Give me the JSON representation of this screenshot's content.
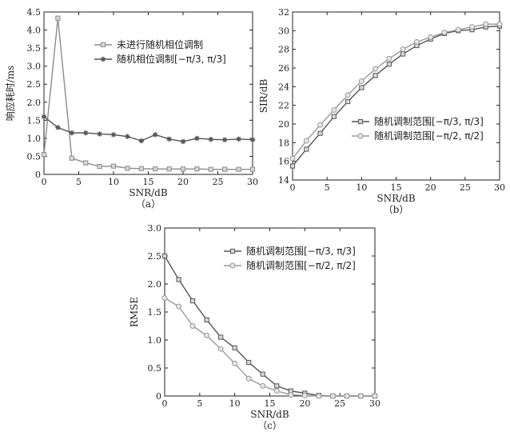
{
  "chart_data": [
    {
      "type": "line",
      "panel_label": "（a）",
      "xlabel": "SNR/dB",
      "ylabel": "响应耗时/ms",
      "xlim": [
        0,
        30
      ],
      "ylim": [
        0,
        4.5
      ],
      "xticks": [
        0,
        5,
        10,
        15,
        20,
        25,
        30
      ],
      "yticks": [
        0,
        0.5,
        1.0,
        1.5,
        2.0,
        2.5,
        3.0,
        3.5,
        4.0,
        4.5
      ],
      "ytick_labels": [
        "0",
        "0.5",
        "1.0",
        "1.5",
        "2.0",
        "2.5",
        "3.0",
        "3.5",
        "4.0",
        "4.5"
      ],
      "legend_position": "top-right",
      "series": [
        {
          "name": "未进行随机相位调制",
          "marker": "square",
          "color": "#8c8c8c",
          "x": [
            0,
            2,
            4,
            6,
            8,
            10,
            12,
            14,
            16,
            18,
            20,
            22,
            24,
            26,
            28,
            30
          ],
          "y": [
            0.55,
            4.33,
            0.45,
            0.32,
            0.22,
            0.23,
            0.17,
            0.16,
            0.15,
            0.15,
            0.15,
            0.15,
            0.14,
            0.14,
            0.14,
            0.14
          ]
        },
        {
          "name": "随机相位调制[−π/3, π/3]",
          "marker": "asterisk",
          "color": "#555555",
          "x": [
            0,
            2,
            4,
            6,
            8,
            10,
            12,
            14,
            16,
            18,
            20,
            22,
            24,
            26,
            28,
            30
          ],
          "y": [
            1.6,
            1.3,
            1.15,
            1.15,
            1.12,
            1.1,
            1.05,
            0.93,
            1.1,
            0.98,
            0.91,
            1.0,
            0.97,
            0.96,
            0.98,
            0.96
          ]
        }
      ]
    },
    {
      "type": "line",
      "panel_label": "（b）",
      "xlabel": "SNR/dB",
      "ylabel": "SIR/dB",
      "xlim": [
        0,
        30
      ],
      "ylim": [
        14,
        32
      ],
      "xticks": [
        0,
        5,
        10,
        15,
        20,
        25,
        30
      ],
      "yticks": [
        14,
        16,
        18,
        20,
        22,
        24,
        26,
        28,
        30,
        32
      ],
      "ytick_labels": [
        "14",
        "16",
        "18",
        "20",
        "22",
        "24",
        "26",
        "28",
        "30",
        "32"
      ],
      "legend_position": "bottom-right",
      "series": [
        {
          "name": "随机调制范围[−π/3, π/3]",
          "marker": "square",
          "color": "#555555",
          "x": [
            0,
            2,
            4,
            6,
            8,
            10,
            12,
            14,
            16,
            18,
            20,
            22,
            24,
            26,
            28,
            30
          ],
          "y": [
            15.5,
            17.3,
            19.0,
            20.8,
            22.4,
            23.9,
            25.2,
            26.4,
            27.5,
            28.4,
            29.1,
            29.7,
            30.0,
            30.1,
            30.4,
            30.5
          ]
        },
        {
          "name": "随机调制范围[−π/2, π/2]",
          "marker": "circle",
          "color": "#999999",
          "x": [
            0,
            2,
            4,
            6,
            8,
            10,
            12,
            14,
            16,
            18,
            20,
            22,
            24,
            26,
            28,
            30
          ],
          "y": [
            16.3,
            18.2,
            19.9,
            21.5,
            23.1,
            24.6,
            25.9,
            27.0,
            28.0,
            28.8,
            29.3,
            29.8,
            30.1,
            30.4,
            30.7,
            30.7
          ]
        }
      ]
    },
    {
      "type": "line",
      "panel_label": "（c）",
      "xlabel": "SNR/dB",
      "ylabel": "RMSE",
      "xlim": [
        0,
        30
      ],
      "ylim": [
        0,
        3.0
      ],
      "xticks": [
        0,
        5,
        10,
        15,
        20,
        25,
        30
      ],
      "yticks": [
        0,
        0.5,
        1.0,
        1.5,
        2.0,
        2.5,
        3.0
      ],
      "ytick_labels": [
        "0",
        "0.5",
        "1.0",
        "1.5",
        "2.0",
        "2.5",
        "3.0"
      ],
      "legend_position": "top-right",
      "series": [
        {
          "name": "随机调制范围[−π/3, π/3]",
          "marker": "square",
          "color": "#555555",
          "x": [
            0,
            2,
            4,
            6,
            8,
            10,
            12,
            14,
            16,
            18,
            20,
            22,
            24,
            26,
            28,
            30
          ],
          "y": [
            2.5,
            2.08,
            1.7,
            1.36,
            1.05,
            0.86,
            0.6,
            0.39,
            0.18,
            0.09,
            0.05,
            0.01,
            0.0,
            0.0,
            0.0,
            0.0
          ]
        },
        {
          "name": "随机调制范围[−π/2, π/2]",
          "marker": "circle",
          "color": "#999999",
          "x": [
            0,
            2,
            4,
            6,
            8,
            10,
            12,
            14,
            16,
            18,
            20,
            22,
            24,
            26,
            28,
            30
          ],
          "y": [
            1.75,
            1.6,
            1.25,
            1.08,
            0.84,
            0.58,
            0.31,
            0.18,
            0.09,
            0.02,
            0.01,
            0.0,
            0.0,
            0.0,
            0.0,
            0.0
          ]
        }
      ]
    }
  ]
}
